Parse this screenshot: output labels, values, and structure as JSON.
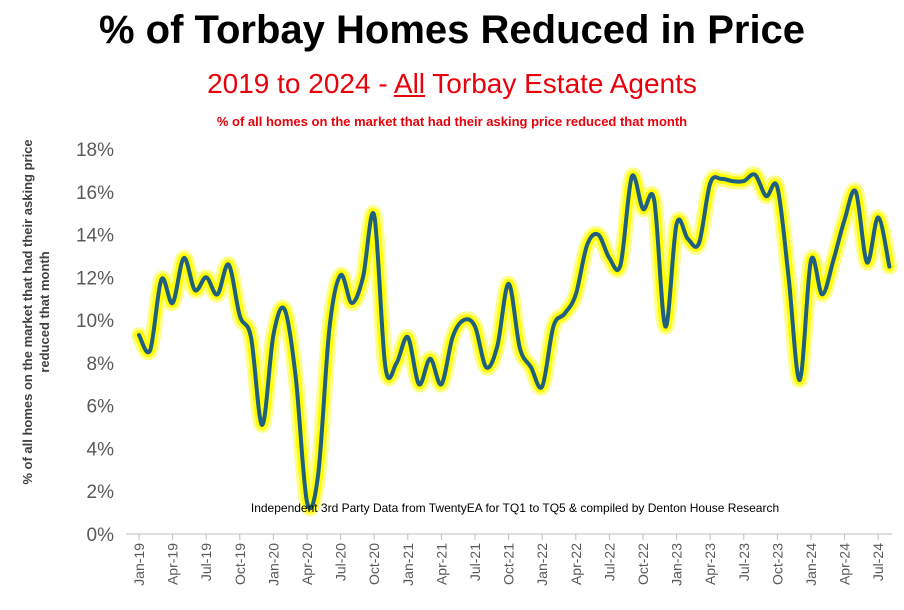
{
  "title": "% of Torbay Homes Reduced in Price",
  "subtitle": {
    "pre": "2019 to 2024 - ",
    "underlined": "All",
    "post": " Torbay Estate Agents"
  },
  "description": "% of all homes on the market that had their asking price reduced that month",
  "chart_data": {
    "type": "line",
    "ylabel_line1": "% of all homes on the market that had their asking price",
    "ylabel_line2": "reduced that month",
    "annotation": "Independent 3rd Party Data from TwentyEA for TQ1 to TQ5 & compiled by Denton House Research",
    "ylim": [
      0,
      18
    ],
    "yticks": [
      0,
      2,
      4,
      6,
      8,
      10,
      12,
      14,
      16,
      18
    ],
    "ytick_labels": [
      "0%",
      "2%",
      "4%",
      "6%",
      "8%",
      "10%",
      "12%",
      "14%",
      "16%",
      "18%"
    ],
    "xtick_labels": [
      "Jan-19",
      "Apr-19",
      "Jul-19",
      "Oct-19",
      "Jan-20",
      "Apr-20",
      "Jul-20",
      "Oct-20",
      "Jan-21",
      "Apr-21",
      "Jul-21",
      "Oct-21",
      "Jan-22",
      "Apr-22",
      "Jul-22",
      "Oct-22",
      "Jan-23",
      "Apr-23",
      "Jul-23",
      "Oct-23",
      "Jan-24",
      "Apr-24",
      "Jul-24"
    ],
    "grid": false,
    "line_color": "#1f5f80",
    "glow_color": "#ffff00",
    "series": [
      {
        "x": [
          "Jan-19",
          "Feb-19",
          "Mar-19",
          "Apr-19",
          "May-19",
          "Jun-19",
          "Jul-19",
          "Aug-19",
          "Sep-19",
          "Oct-19",
          "Nov-19",
          "Dec-19",
          "Jan-20",
          "Feb-20",
          "Mar-20",
          "Apr-20",
          "May-20",
          "Jun-20",
          "Jul-20",
          "Aug-20",
          "Sep-20",
          "Oct-20",
          "Nov-20",
          "Dec-20",
          "Jan-21",
          "Feb-21",
          "Mar-21",
          "Apr-21",
          "May-21",
          "Jun-21",
          "Jul-21",
          "Aug-21",
          "Sep-21",
          "Oct-21",
          "Nov-21",
          "Dec-21",
          "Jan-22",
          "Feb-22",
          "Mar-22",
          "Apr-22",
          "May-22",
          "Jun-22",
          "Jul-22",
          "Aug-22",
          "Sep-22",
          "Oct-22",
          "Nov-22",
          "Dec-22",
          "Jan-23",
          "Feb-23",
          "Mar-23",
          "Apr-23",
          "May-23",
          "Jun-23",
          "Jul-23",
          "Aug-23",
          "Sep-23",
          "Oct-23",
          "Nov-23",
          "Dec-23",
          "Jan-24",
          "Feb-24",
          "Mar-24",
          "Apr-24",
          "May-24",
          "Jun-24",
          "Jul-24",
          "Aug-24"
        ],
        "values": [
          9.3,
          8.6,
          11.9,
          10.8,
          12.9,
          11.4,
          12.0,
          11.2,
          12.6,
          10.2,
          9.2,
          5.1,
          9.3,
          10.5,
          7.3,
          1.5,
          2.8,
          9.6,
          12.1,
          10.8,
          12.0,
          14.9,
          7.8,
          8.0,
          9.2,
          7.0,
          8.2,
          7.0,
          9.2,
          10.0,
          9.7,
          7.8,
          8.8,
          11.7,
          8.7,
          7.8,
          6.9,
          9.7,
          10.3,
          11.2,
          13.5,
          14.0,
          12.9,
          12.6,
          16.7,
          15.2,
          15.6,
          9.7,
          14.5,
          13.8,
          13.6,
          16.4,
          16.6,
          16.5,
          16.5,
          16.8,
          15.8,
          16.2,
          12.0,
          7.2,
          12.8,
          11.2,
          12.8,
          14.7,
          16.0,
          12.7,
          14.8,
          12.5
        ]
      }
    ]
  }
}
